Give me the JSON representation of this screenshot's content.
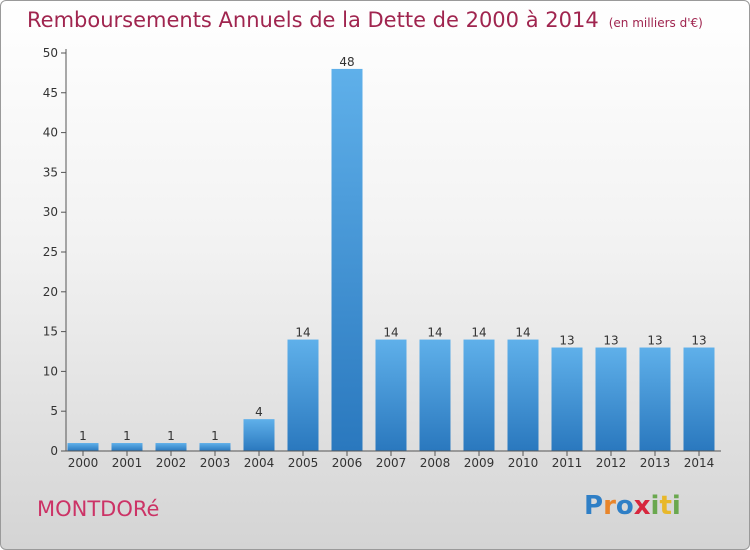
{
  "header": {
    "title": "Remboursements Annuels de la Dette de 2000 à 2014",
    "subtitle": "(en milliers d'€)"
  },
  "footer": {
    "commune": "MONTDORé",
    "logo_letters": [
      {
        "ch": "P",
        "color": "#2f7fc6"
      },
      {
        "ch": "r",
        "color": "#e8852a"
      },
      {
        "ch": "o",
        "color": "#2f7fc6"
      },
      {
        "ch": "x",
        "color": "#d7263d"
      },
      {
        "ch": "i",
        "color": "#6aa84f"
      },
      {
        "ch": "t",
        "color": "#e8b82a"
      },
      {
        "ch": "i",
        "color": "#6aa84f"
      }
    ]
  },
  "chart_data": {
    "type": "bar",
    "title": "Remboursements Annuels de la Dette de 2000 à 2014",
    "subtitle": "(en milliers d'€)",
    "categories": [
      "2000",
      "2001",
      "2002",
      "2003",
      "2004",
      "2005",
      "2006",
      "2007",
      "2008",
      "2009",
      "2010",
      "2011",
      "2012",
      "2013",
      "2014"
    ],
    "values": [
      1,
      1,
      1,
      1,
      4,
      14,
      48,
      14,
      14,
      14,
      14,
      13,
      13,
      13,
      13
    ],
    "value_labels": [
      "1",
      "1",
      "1",
      "1",
      "4",
      "14",
      "48",
      "14",
      "14",
      "14",
      "14",
      "13",
      "13",
      "13",
      "13"
    ],
    "ylim": [
      0,
      50
    ],
    "yticks": [
      0,
      5,
      10,
      15,
      20,
      25,
      30,
      35,
      40,
      45,
      50
    ],
    "grid": false,
    "bar_color": "#3a8fd4"
  }
}
